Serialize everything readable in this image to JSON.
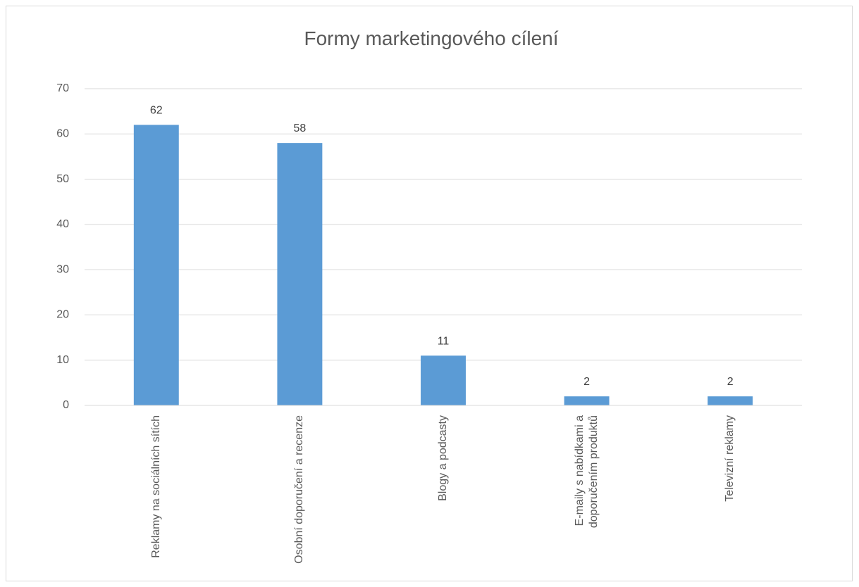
{
  "chart_data": {
    "type": "bar",
    "title": "Formy marketingového cílení",
    "categories": [
      "Reklamy na sociálních sítích",
      "Osobní doporučení a recenze",
      "Blogy a podcasty",
      "E-maily s nabídkami a doporučením produktů",
      "Televizní reklamy"
    ],
    "values": [
      62,
      58,
      11,
      2,
      2
    ],
    "color": "#5b9bd5",
    "ylim": [
      0,
      70
    ],
    "yticks": [
      0,
      10,
      20,
      30,
      40,
      50,
      60,
      70
    ],
    "grid": true
  }
}
